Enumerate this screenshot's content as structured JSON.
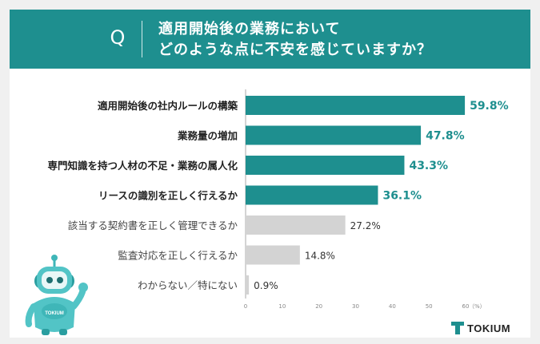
{
  "header": {
    "q_label": "Q",
    "title_line1": "適用開始後の業務において",
    "title_line2": "どのような点に不安を感じていますか？"
  },
  "chart_data": {
    "type": "bar",
    "orientation": "horizontal",
    "categories": [
      "適用開始後の社内ルールの構築",
      "業務量の増加",
      "専門知識を持つ人材の不足・業務の属人化",
      "リースの識別を正しく行えるか",
      "該当する契約書を正しく管理できるか",
      "監査対応を正しく行えるか",
      "わからない／特にない"
    ],
    "values": [
      59.8,
      47.8,
      43.3,
      36.1,
      27.2,
      14.8,
      0.9
    ],
    "value_labels": [
      "59.8%",
      "47.8%",
      "43.3%",
      "36.1%",
      "27.2%",
      "14.8%",
      "0.9%"
    ],
    "highlighted": [
      true,
      true,
      true,
      true,
      false,
      false,
      false
    ],
    "xlim": [
      0,
      60
    ],
    "xticks": [
      "0",
      "10",
      "20",
      "30",
      "40",
      "50",
      "60"
    ],
    "unit_label": "（%）",
    "colors": {
      "highlight": "#1e8f8f",
      "normal": "#d3d3d3",
      "axis": "#aaaaaa"
    }
  },
  "logo": {
    "text": "TOKIUM",
    "color": "#1e8f8f"
  },
  "mascot": {
    "label": "TOKIUM"
  }
}
